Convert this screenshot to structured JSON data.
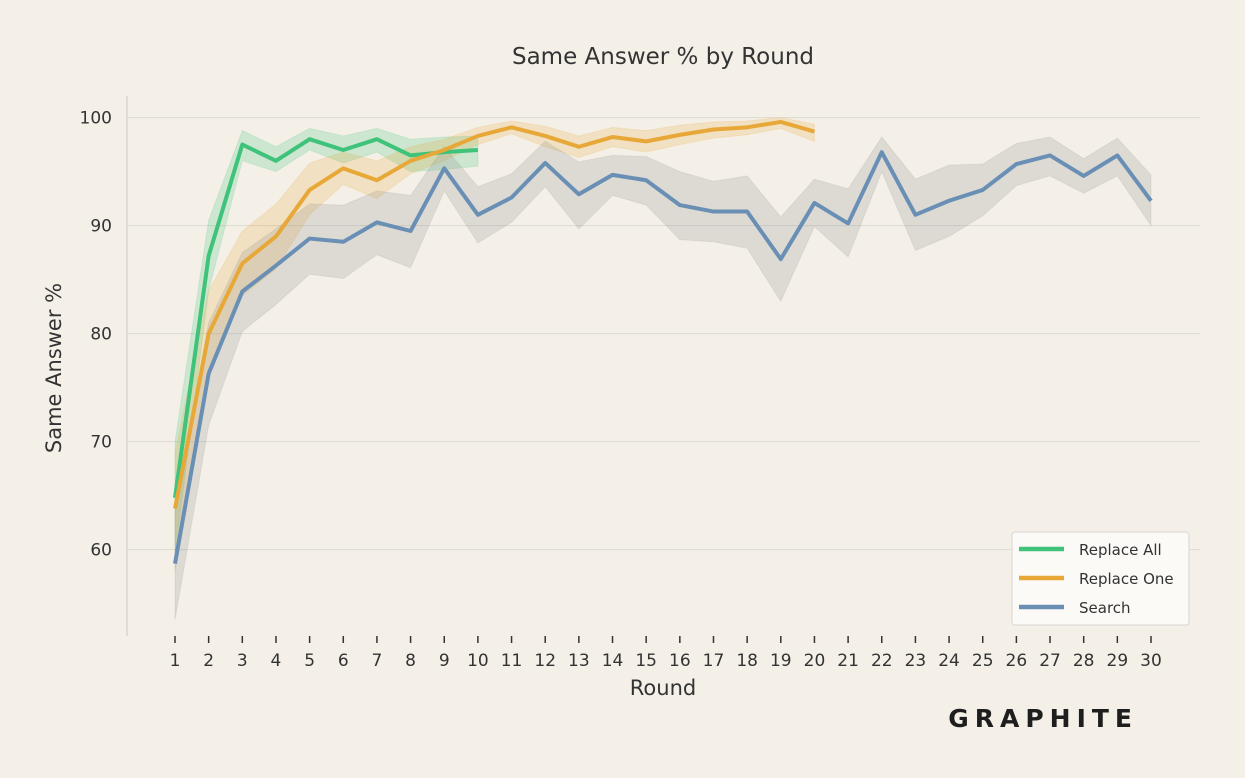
{
  "chart_data": {
    "type": "line",
    "title": "Same Answer % by Round",
    "xlabel": "Round",
    "ylabel": "Same Answer %",
    "xlim": [
      1,
      30
    ],
    "ylim": [
      52,
      102
    ],
    "yticks": [
      60,
      70,
      80,
      90,
      100
    ],
    "grid": "horizontal",
    "legend_position": "bottom-right",
    "brand": "GRAPHITE",
    "series": [
      {
        "name": "Replace All",
        "color": "#3fc27a",
        "x": [
          1,
          2,
          3,
          4,
          5,
          6,
          7,
          8,
          9,
          10
        ],
        "values": [
          64.8,
          87.2,
          97.5,
          96.0,
          98.0,
          97.0,
          98.0,
          96.5,
          96.8,
          97.0
        ],
        "lower": [
          59.5,
          84.0,
          96.0,
          95.0,
          97.0,
          95.8,
          96.8,
          95.0,
          95.2,
          95.5
        ],
        "upper": [
          70.0,
          90.5,
          98.8,
          97.3,
          99.0,
          98.3,
          99.0,
          98.0,
          98.2,
          98.3
        ]
      },
      {
        "name": "Replace One",
        "color": "#e8a838",
        "x": [
          1,
          2,
          3,
          4,
          5,
          6,
          7,
          8,
          9,
          10,
          11,
          12,
          13,
          14,
          15,
          16,
          17,
          18,
          19,
          20
        ],
        "values": [
          63.8,
          80.0,
          86.5,
          89.0,
          93.3,
          95.3,
          94.2,
          96.0,
          97.0,
          98.3,
          99.1,
          98.3,
          97.3,
          98.2,
          97.8,
          98.4,
          98.9,
          99.1,
          99.6,
          98.7
        ],
        "lower": [
          58.0,
          76.0,
          83.5,
          86.0,
          91.0,
          93.8,
          92.5,
          94.8,
          96.0,
          97.5,
          98.5,
          97.3,
          96.3,
          97.3,
          96.8,
          97.5,
          98.1,
          98.4,
          99.0,
          97.8
        ],
        "upper": [
          69.0,
          84.0,
          89.5,
          92.0,
          95.8,
          96.8,
          96.0,
          97.3,
          98.0,
          99.1,
          99.7,
          99.2,
          98.3,
          99.1,
          98.8,
          99.3,
          99.6,
          99.7,
          100.0,
          99.4
        ]
      },
      {
        "name": "Search",
        "color": "#6a8fb5",
        "x": [
          1,
          2,
          3,
          4,
          5,
          6,
          7,
          8,
          9,
          10,
          11,
          12,
          13,
          14,
          15,
          16,
          17,
          18,
          19,
          20,
          21,
          22,
          23,
          24,
          25,
          26,
          27,
          28,
          29,
          30
        ],
        "values": [
          58.7,
          76.3,
          83.9,
          86.3,
          88.8,
          88.5,
          90.3,
          89.5,
          95.3,
          91.0,
          92.6,
          95.8,
          92.9,
          94.7,
          94.2,
          91.9,
          91.3,
          91.3,
          86.9,
          92.1,
          90.2,
          96.8,
          91.0,
          92.3,
          93.3,
          95.7,
          96.5,
          94.6,
          96.5,
          92.3
        ],
        "lower": [
          53.5,
          71.5,
          80.2,
          82.7,
          85.5,
          85.1,
          87.3,
          86.1,
          93.2,
          88.4,
          90.3,
          93.6,
          89.7,
          92.8,
          91.9,
          88.7,
          88.5,
          87.9,
          83.0,
          89.9,
          87.1,
          95.0,
          87.7,
          89.0,
          90.9,
          93.7,
          94.6,
          93.0,
          94.6,
          90.0
        ],
        "upper": [
          64.0,
          81.0,
          87.5,
          89.7,
          92.0,
          91.9,
          93.2,
          92.8,
          97.3,
          93.6,
          94.8,
          97.8,
          95.9,
          96.5,
          96.4,
          95.0,
          94.1,
          94.6,
          90.8,
          94.3,
          93.4,
          98.2,
          94.3,
          95.6,
          95.7,
          97.6,
          98.2,
          96.2,
          98.1,
          94.7
        ]
      }
    ]
  }
}
